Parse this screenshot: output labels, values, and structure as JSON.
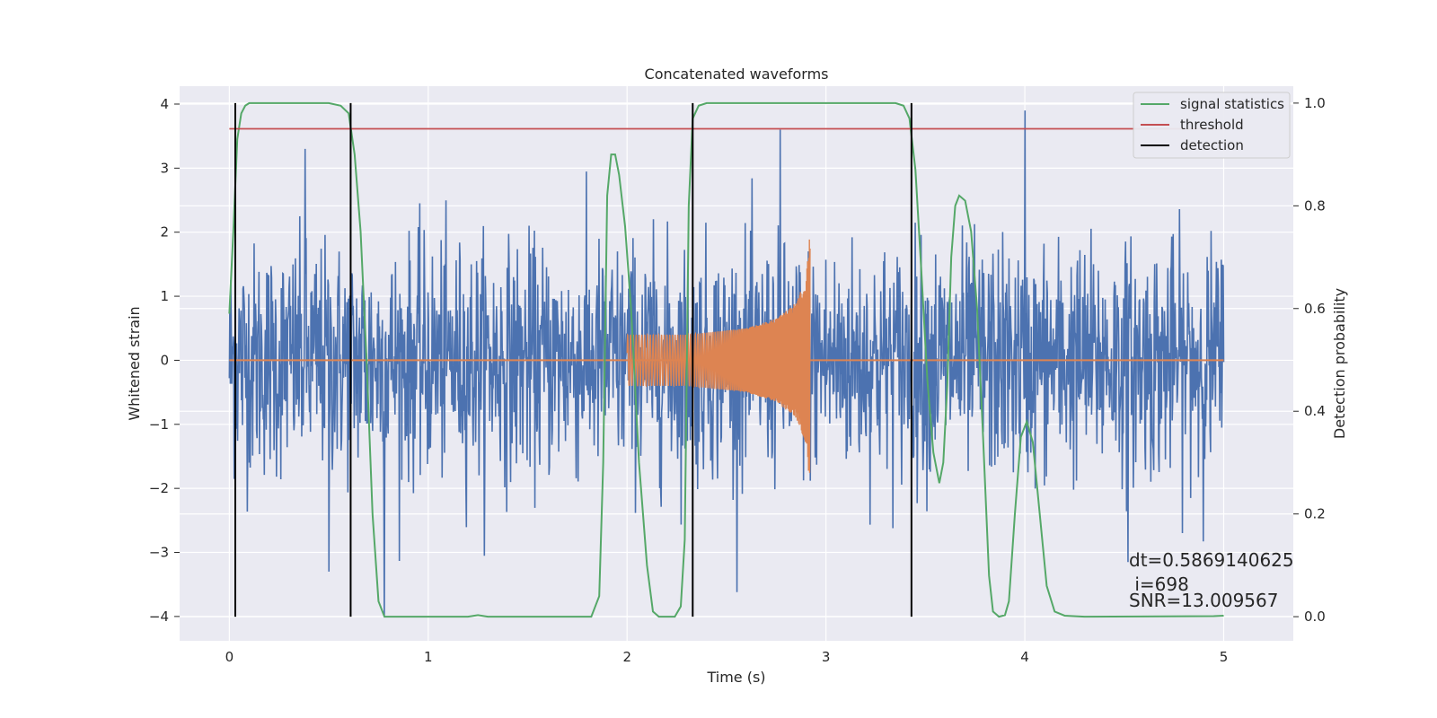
{
  "chart_data": {
    "type": "line",
    "title": "Concatenated waveforms",
    "xlabel": "Time (s)",
    "ylabel": "Whitened strain",
    "ylabel_right": "Detection probability",
    "xlim": [
      -0.25,
      5.35
    ],
    "ylim": [
      -4.38,
      4.28
    ],
    "ylim_right": [
      -0.047,
      1.033
    ],
    "xticks": [
      0,
      1,
      2,
      3,
      4,
      5
    ],
    "xtick_labels": [
      "0",
      "1",
      "2",
      "3",
      "4",
      "5"
    ],
    "yticks": [
      4,
      3,
      2,
      1,
      0,
      -1,
      -2,
      -3,
      -4
    ],
    "ytick_labels": [
      "4",
      "3",
      "2",
      "1",
      "0",
      "−1",
      "−2",
      "−3",
      "−4"
    ],
    "yticks_right": [
      1.0,
      0.8,
      0.6,
      0.4,
      0.2,
      0.0
    ],
    "ytick_labels_right": [
      "1.0",
      "0.8",
      "0.6",
      "0.4",
      "0.2",
      "0.0"
    ],
    "grid": true,
    "legend_position": "top-right",
    "colors": {
      "background": "#eaeaf2",
      "grid": "#ffffff",
      "noise": "#4c72b0",
      "injection": "#dd8452",
      "signal_statistics": "#55a868",
      "threshold": "#c44e52",
      "detection": "#000000"
    },
    "series": [
      {
        "name": "noise",
        "axis": "left",
        "x_range": [
          0,
          5
        ],
        "samples": 2048,
        "typical_std": 0.9,
        "min": -4.0,
        "max": 3.9,
        "notable_spikes": [
          [
            0.38,
            3.3
          ],
          [
            0.78,
            -4.0
          ],
          [
            2.77,
            3.6
          ],
          [
            4.0,
            3.9
          ],
          [
            0.5,
            -3.3
          ],
          [
            4.52,
            -3.15
          ]
        ]
      },
      {
        "name": "injection",
        "axis": "left",
        "x_range": [
          2.0,
          2.92
        ],
        "envelope": [
          [
            2.0,
            0.4
          ],
          [
            2.3,
            0.4
          ],
          [
            2.6,
            0.5
          ],
          [
            2.75,
            0.65
          ],
          [
            2.85,
            0.9
          ],
          [
            2.9,
            1.3
          ],
          [
            2.92,
            2.0
          ]
        ],
        "baseline": 0
      },
      {
        "name": "signal statistics",
        "axis": "right",
        "points": [
          [
            0.0,
            0.59
          ],
          [
            0.02,
            0.75
          ],
          [
            0.04,
            0.93
          ],
          [
            0.06,
            0.98
          ],
          [
            0.08,
            0.995
          ],
          [
            0.1,
            1.0
          ],
          [
            0.5,
            1.0
          ],
          [
            0.56,
            0.995
          ],
          [
            0.6,
            0.98
          ],
          [
            0.63,
            0.9
          ],
          [
            0.66,
            0.75
          ],
          [
            0.69,
            0.5
          ],
          [
            0.72,
            0.2
          ],
          [
            0.75,
            0.03
          ],
          [
            0.78,
            0.0
          ],
          [
            1.2,
            0.0
          ],
          [
            1.25,
            0.003
          ],
          [
            1.3,
            0.0
          ],
          [
            1.82,
            0.0
          ],
          [
            1.86,
            0.04
          ],
          [
            1.88,
            0.3
          ],
          [
            1.9,
            0.82
          ],
          [
            1.92,
            0.9
          ],
          [
            1.94,
            0.9
          ],
          [
            1.96,
            0.86
          ],
          [
            1.99,
            0.76
          ],
          [
            2.02,
            0.6
          ],
          [
            2.06,
            0.3
          ],
          [
            2.1,
            0.1
          ],
          [
            2.13,
            0.01
          ],
          [
            2.16,
            0.0
          ],
          [
            2.24,
            0.0
          ],
          [
            2.27,
            0.02
          ],
          [
            2.29,
            0.15
          ],
          [
            2.31,
            0.8
          ],
          [
            2.33,
            0.97
          ],
          [
            2.36,
            0.995
          ],
          [
            2.4,
            1.0
          ],
          [
            3.35,
            1.0
          ],
          [
            3.39,
            0.995
          ],
          [
            3.42,
            0.97
          ],
          [
            3.45,
            0.87
          ],
          [
            3.48,
            0.67
          ],
          [
            3.51,
            0.46
          ],
          [
            3.54,
            0.32
          ],
          [
            3.57,
            0.26
          ],
          [
            3.59,
            0.3
          ],
          [
            3.61,
            0.45
          ],
          [
            3.63,
            0.7
          ],
          [
            3.65,
            0.8
          ],
          [
            3.67,
            0.82
          ],
          [
            3.7,
            0.81
          ],
          [
            3.73,
            0.75
          ],
          [
            3.76,
            0.6
          ],
          [
            3.79,
            0.35
          ],
          [
            3.82,
            0.08
          ],
          [
            3.84,
            0.01
          ],
          [
            3.87,
            0.0
          ],
          [
            3.9,
            0.003
          ],
          [
            3.92,
            0.03
          ],
          [
            3.95,
            0.2
          ],
          [
            3.98,
            0.35
          ],
          [
            4.01,
            0.38
          ],
          [
            4.04,
            0.34
          ],
          [
            4.07,
            0.22
          ],
          [
            4.11,
            0.06
          ],
          [
            4.15,
            0.01
          ],
          [
            4.2,
            0.002
          ],
          [
            4.3,
            0.0
          ],
          [
            4.95,
            0.001
          ],
          [
            5.0,
            0.002
          ]
        ]
      },
      {
        "name": "threshold",
        "axis": "right",
        "points": [
          [
            0.0,
            0.95
          ],
          [
            5.0,
            0.95
          ]
        ]
      },
      {
        "name": "detection",
        "axis": "right",
        "segments": [
          [
            0.03,
            0.0,
            1.0
          ],
          [
            0.61,
            0.0,
            1.0
          ],
          [
            2.33,
            0.0,
            1.0
          ],
          [
            3.43,
            0.0,
            1.0
          ]
        ]
      }
    ],
    "legend": [
      {
        "label": "signal statistics",
        "color": "#55a868"
      },
      {
        "label": "threshold",
        "color": "#c44e52"
      },
      {
        "label": "detection",
        "color": "#000000"
      }
    ],
    "annotations": [
      "dt=0.5869140625",
      " i=698",
      "SNR=13.009567"
    ]
  }
}
